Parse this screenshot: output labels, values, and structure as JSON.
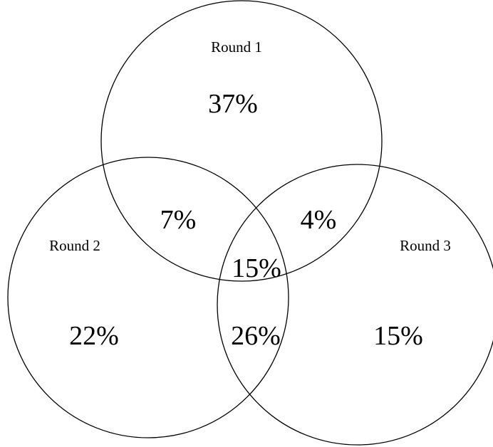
{
  "diagram": {
    "type": "venn",
    "sets": [
      {
        "id": "r1",
        "label": "Round 1"
      },
      {
        "id": "r2",
        "label": "Round 2"
      },
      {
        "id": "r3",
        "label": "Round 3"
      }
    ],
    "regions": {
      "r1_only": "37%",
      "r2_only": "22%",
      "r3_only": "15%",
      "r1_r2": "7%",
      "r1_r3": "4%",
      "r2_r3": "26%",
      "r1_r2_r3": "15%"
    }
  }
}
